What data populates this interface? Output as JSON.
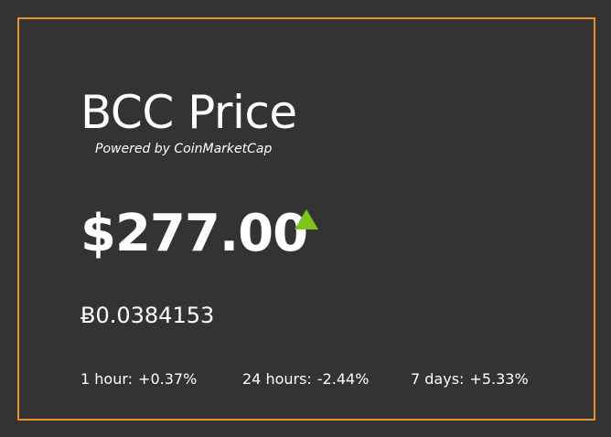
{
  "widget": {
    "title": "BCC Price",
    "powered_by": "Powered by CoinMarketCap",
    "price_usd": "$277.00",
    "trend": "up",
    "price_btc": "Ƀ0.0384153",
    "changes": [
      {
        "label": "1 hour:",
        "value": "+0.37%"
      },
      {
        "label": "24 hours:",
        "value": "-2.44%"
      },
      {
        "label": "7 days:",
        "value": "+5.33%"
      }
    ]
  },
  "colors": {
    "background": "#333333",
    "border": "#E8912A",
    "text": "#FFFFFF",
    "up_arrow": "#7CC51F"
  },
  "icons": {
    "trend_icon": "triangle-up-icon"
  }
}
